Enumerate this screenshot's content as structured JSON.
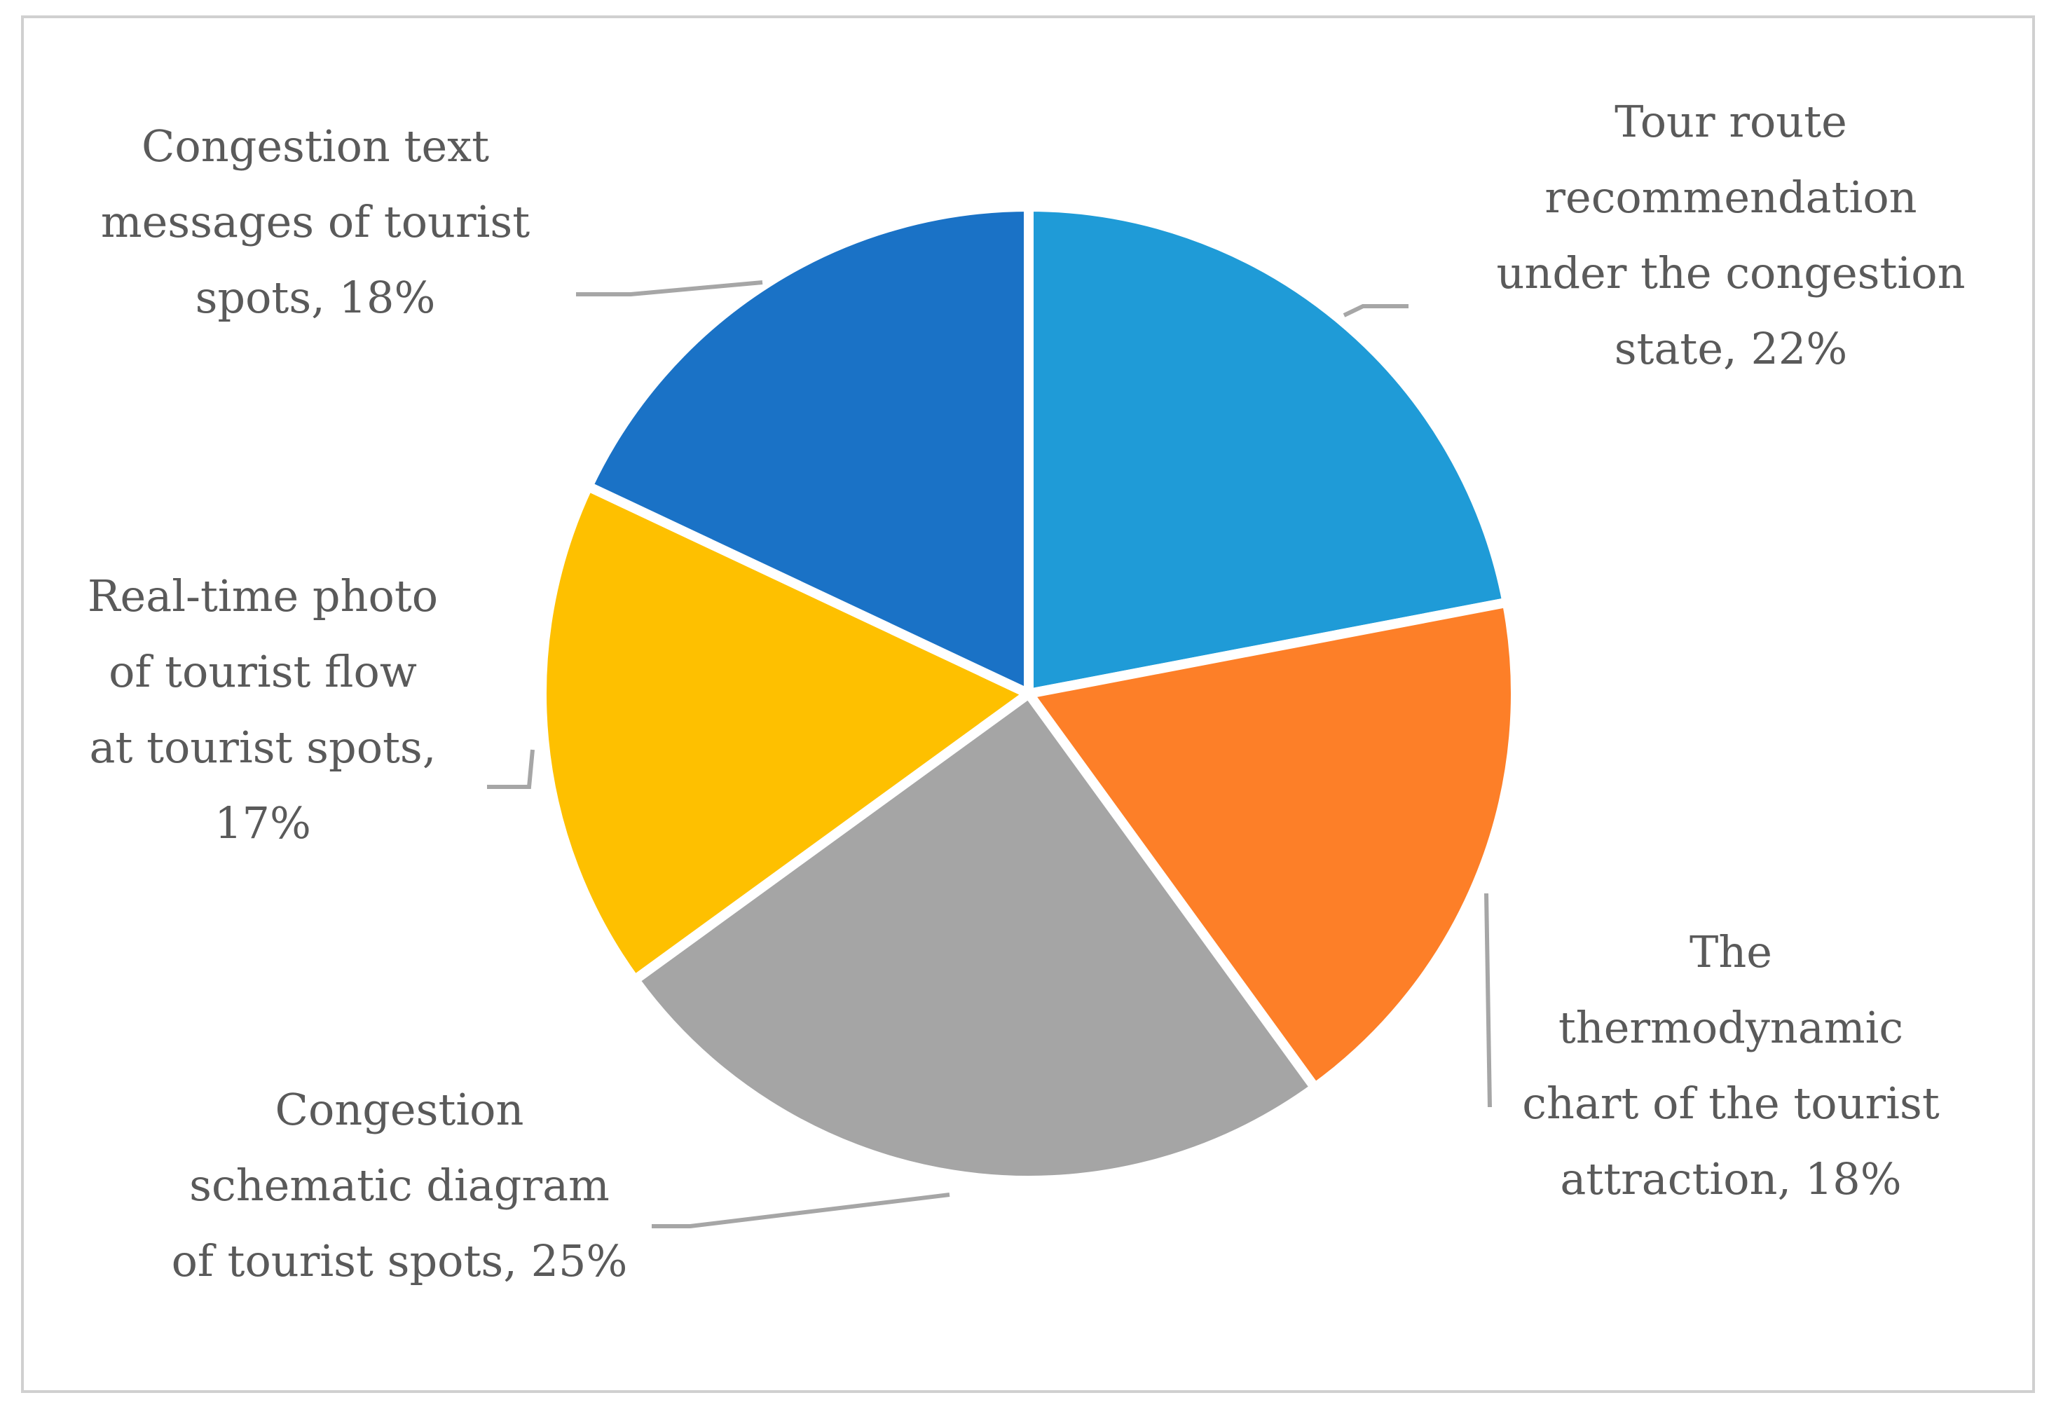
{
  "chart_data": {
    "type": "pie",
    "slices": [
      {
        "label_lines": [
          "Tour route",
          "recommendation",
          "under the congestion",
          "state, 22%"
        ],
        "value": 22,
        "color": "#1f9bd7"
      },
      {
        "label_lines": [
          "The",
          "thermodynamic",
          "chart of the tourist",
          "attraction, 18%"
        ],
        "value": 18,
        "color": "#fd7f28"
      },
      {
        "label_lines": [
          "Congestion",
          "schematic diagram",
          "of tourist spots, 25%"
        ],
        "value": 25,
        "color": "#a5a5a5"
      },
      {
        "label_lines": [
          "Real-time photo",
          "of tourist flow",
          "at tourist spots,",
          "17%"
        ],
        "value": 17,
        "color": "#fec000"
      },
      {
        "label_lines": [
          "Congestion text",
          "messages of tourist",
          "spots, 18%"
        ],
        "value": 18,
        "color": "#1a72c6"
      }
    ],
    "start_angle": "12 o'clock",
    "direction": "clockwise",
    "legend": "none",
    "data_labels": "outside with leader lines"
  }
}
